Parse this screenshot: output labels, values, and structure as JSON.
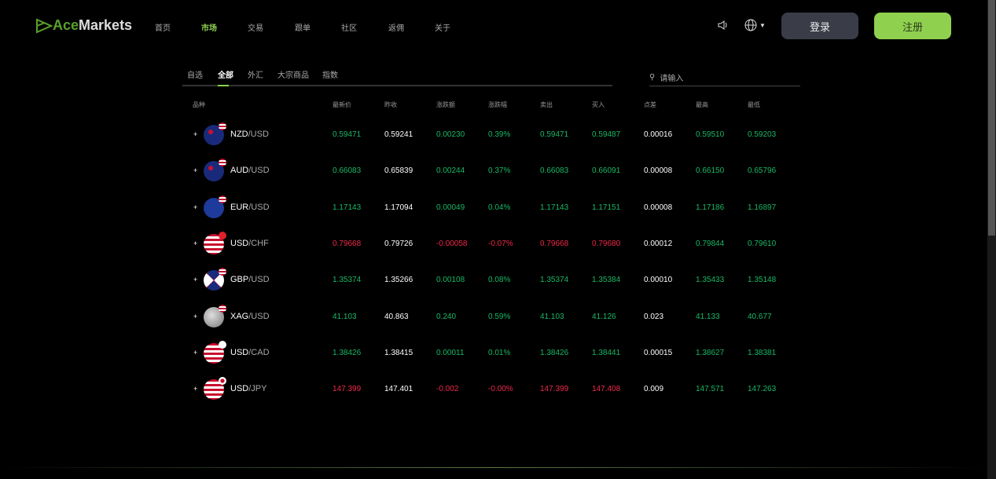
{
  "header": {
    "logo": {
      "part1": "Ace",
      "part2": "Markets"
    },
    "nav": [
      {
        "label": "首页"
      },
      {
        "label": "市场",
        "active": true
      },
      {
        "label": "交易"
      },
      {
        "label": "跟单"
      },
      {
        "label": "社区"
      },
      {
        "label": "返佣"
      },
      {
        "label": "关于"
      }
    ],
    "login": "登录",
    "register": "注册",
    "icons": [
      "speaker-icon",
      "globe-icon"
    ]
  },
  "tabs": [
    {
      "label": "自选"
    },
    {
      "label": "全部",
      "active": true
    },
    {
      "label": "外汇"
    },
    {
      "label": "大宗商品"
    },
    {
      "label": "指数"
    }
  ],
  "search": {
    "placeholder": "请输入"
  },
  "colors": {
    "up": "#19b865",
    "down": "#f0284a",
    "accent": "#8fd14f"
  },
  "table": {
    "headers": [
      "品种",
      "最新价",
      "昨收",
      "涨跌额",
      "涨跌幅",
      "卖出",
      "买入",
      "点差",
      "最高",
      "最低"
    ],
    "rows": [
      {
        "base": "NZD",
        "quote": "/USD",
        "dir": "up",
        "cells": [
          "0.59471",
          "0.59241",
          "0.00230",
          "0.39%",
          "0.59471",
          "0.59487",
          "0.00016",
          "0.59510",
          "0.59203"
        ]
      },
      {
        "base": "AUD",
        "quote": "/USD",
        "dir": "up",
        "cells": [
          "0.66083",
          "0.65839",
          "0.00244",
          "0.37%",
          "0.66083",
          "0.66091",
          "0.00008",
          "0.66150",
          "0.65796"
        ]
      },
      {
        "base": "EUR",
        "quote": "/USD",
        "dir": "up",
        "cells": [
          "1.17143",
          "1.17094",
          "0.00049",
          "0.04%",
          "1.17143",
          "1.17151",
          "0.00008",
          "1.17186",
          "1.16897"
        ]
      },
      {
        "base": "USD",
        "quote": "/CHF",
        "dir": "down",
        "cells": [
          "0.79668",
          "0.79726",
          "-0.00058",
          "-0.07%",
          "0.79668",
          "0.79680",
          "0.00012",
          "0.79844",
          "0.79610"
        ]
      },
      {
        "base": "GBP",
        "quote": "/USD",
        "dir": "up",
        "cells": [
          "1.35374",
          "1.35266",
          "0.00108",
          "0.08%",
          "1.35374",
          "1.35384",
          "0.00010",
          "1.35433",
          "1.35148"
        ]
      },
      {
        "base": "XAG",
        "quote": "/USD",
        "dir": "up",
        "cells": [
          "41.103",
          "40.863",
          "0.240",
          "0.59%",
          "41.103",
          "41.126",
          "0.023",
          "41.133",
          "40.677"
        ]
      },
      {
        "base": "USD",
        "quote": "/CAD",
        "dir": "up",
        "cells": [
          "1.38426",
          "1.38415",
          "0.00011",
          "0.01%",
          "1.38426",
          "1.38441",
          "0.00015",
          "1.38627",
          "1.38381"
        ]
      },
      {
        "base": "USD",
        "quote": "/JPY",
        "dir": "down",
        "cells": [
          "147.399",
          "147.401",
          "-0.002",
          "-0.00%",
          "147.399",
          "147.408",
          "0.009",
          "147.571",
          "147.263"
        ]
      }
    ]
  }
}
